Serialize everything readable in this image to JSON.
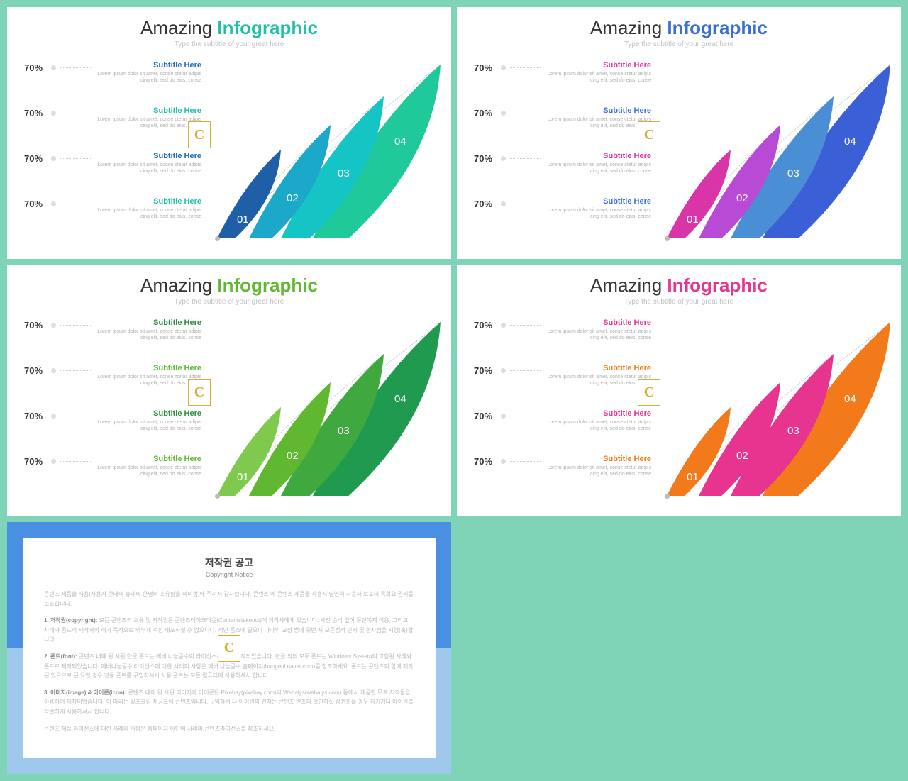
{
  "title_w1": "Amazing",
  "title_w2": "Infographic",
  "subtitle": "Type the subtitle of your great here",
  "pct": "70%",
  "sub_label": "Subtitle Here",
  "desc_text": "Lorem ipsum dolor sit amet, conse ctetur adipis cing elit, sed do eius. conse",
  "nums": [
    "01",
    "02",
    "03",
    "04"
  ],
  "variants": [
    {
      "accent": "#1fbfa8",
      "subcolors": [
        "#1e6bb8",
        "#1fbfa8",
        "#1e6bb8",
        "#1fbfa8"
      ],
      "petals": [
        "#1e5fa8",
        "#1ba8c9",
        "#15c4c4",
        "#1fc99a"
      ]
    },
    {
      "accent": "#3b6fd6",
      "subcolors": [
        "#d934a8",
        "#3b6fd6",
        "#d934a8",
        "#3b6fd6"
      ],
      "petals": [
        "#d934a8",
        "#b84ad6",
        "#4a8fd6",
        "#3b5fd6"
      ]
    },
    {
      "accent": "#5fb82f",
      "subcolors": [
        "#2a8f3f",
        "#5fb82f",
        "#2a8f3f",
        "#5fb82f"
      ],
      "petals": [
        "#7fc94f",
        "#5fb82f",
        "#3fa83f",
        "#1f9a4f"
      ]
    },
    {
      "accent": "#e6348f",
      "subcolors": [
        "#e6348f",
        "#f27a1a",
        "#e6348f",
        "#f27a1a"
      ],
      "petals": [
        "#f27a1a",
        "#e6348f",
        "#e6348f",
        "#f27a1a"
      ]
    }
  ],
  "copyright": {
    "title": "저작권 공고",
    "sub": "Copyright Notice",
    "p1": "콘텐츠 제품을 사용(사용자 한대의 휴대와 한명의 소유함을 의미함)에 주셔서 감사합니다. 콘텐츠 에 콘텐츠 제품을 사용시 당연히 사용자 보호의 목회요 권리를 보호합니다.",
    "p2_label": "1. 저작권(copyright):",
    "p2": " 모든 콘텐츠의 소유 및 저작권은 콘텐츠테이크아웃(Contentstakeout)에 제작사에게 있습니다. 사전 승낙 없이 무단복제 이용, 그리고 사례와 콤드의 제작자의 허가 목적으로 외부재 수정 배포하실 수 없으니다. 적인 폼스에 일으나 나나의 교정 법에 위반 시 모든법적 민사 및 형사심을 시행(혹)합니다.",
    "p3_label": "2. 폰트(font):",
    "p3": " 콘텐츠 내에 된 시된 한글 폰트는 에버 나눔공수의 라이선스를 사용 제작되었습니다. 한글 외의 모두 폰트는 Windows System의 호함된 사례와 폰트로 제작되었습니다. 에버나눔공수 라이선스에 대한 사례의 사항은 에버 나눔공수 홈페이지(hangeul.naver.com)를 참조하세요. 폰트는 콘텐츠의 함에 제작된 있으므로 된 요일 경우 전용 폰트를 구입하셔서 사용 폰트는 모든 컴퓨터에 사용하셔서 합니다.",
    "p4_label": "3. 이미지(image) & 아이콘(icon):",
    "p4": " 콘텐츠 내에 된 사된 이미지와 아이콘은 Pixabay(pixabay.com)와 Webalys(webalys.com) 등에서 제공한 무료 저작물을 아용하여 제작되었습니다. 이 마리는 활조크림 제공크림 콘텐츠입니다. 구입하셔 나 아이원의 건처는 콘텐츠 변조의 확인하실 상관회율 경우 하기기나 아이원를 방갈하게 사용하셔서 합니다.",
    "p5": "콘텐츠 제품 라이선스에 대한 사례의 사항은 홈페이지 아단에 사례의 콘텐츠라이선스를 참조하세요."
  }
}
